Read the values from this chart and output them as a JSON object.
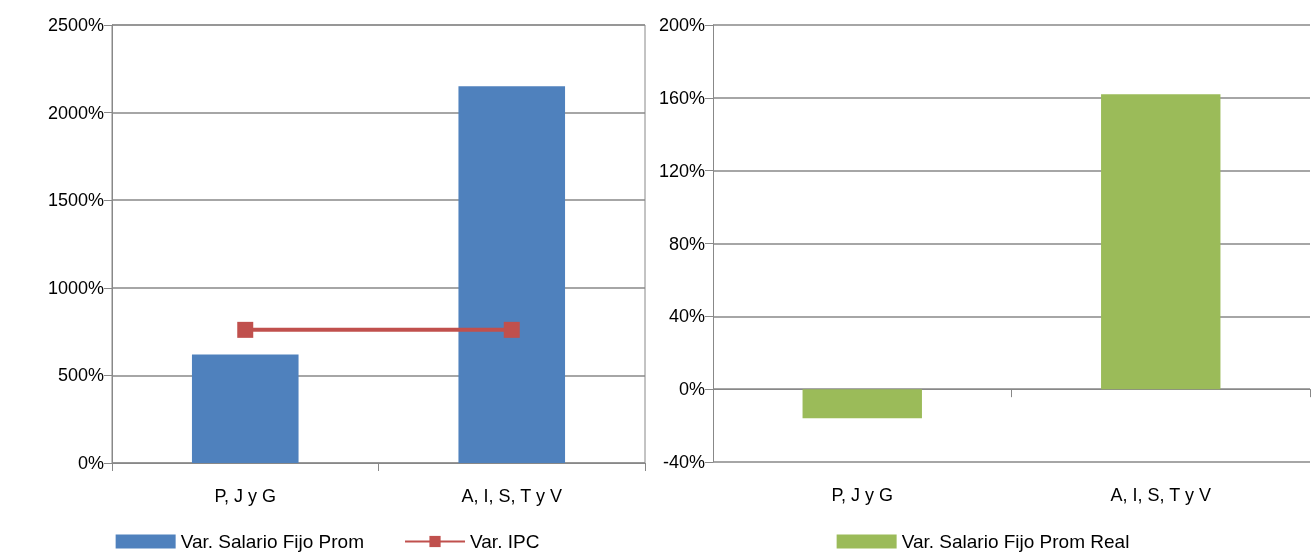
{
  "chart_data": [
    {
      "type": "bar",
      "categories": [
        "P, J y G",
        "A, I, S, T y V"
      ],
      "series": [
        {
          "name": "Var. Salario Fijo Prom",
          "color": "#4f81bd",
          "values": [
            620,
            2150
          ]
        },
        {
          "name": "Var. IPC",
          "type": "line",
          "color": "#c0504d",
          "values": [
            760,
            760
          ],
          "marker": "square"
        }
      ],
      "ylim": [
        0,
        2500
      ],
      "yticks": [
        {
          "value": 0,
          "label": "0%"
        },
        {
          "value": 500,
          "label": "500%"
        },
        {
          "value": 1000,
          "label": "1000%"
        },
        {
          "value": 1500,
          "label": "1500%"
        },
        {
          "value": 2000,
          "label": "2000%"
        },
        {
          "value": 2500,
          "label": "2500%"
        }
      ],
      "grid": "y",
      "legend": "bottom"
    },
    {
      "type": "bar",
      "categories": [
        "P, J y G",
        "A, I, S, T y V"
      ],
      "series": [
        {
          "name": "Var. Salario Fijo Prom Real",
          "color": "#9bbb59",
          "values": [
            -16,
            162
          ]
        }
      ],
      "ylim": [
        -40,
        200
      ],
      "yticks": [
        {
          "value": -40,
          "label": "-40%"
        },
        {
          "value": 0,
          "label": "0%"
        },
        {
          "value": 40,
          "label": "40%"
        },
        {
          "value": 80,
          "label": "80%"
        },
        {
          "value": 120,
          "label": "120%"
        },
        {
          "value": 160,
          "label": "160%"
        },
        {
          "value": 200,
          "label": "200%"
        }
      ],
      "grid": "y",
      "legend": "bottom"
    }
  ]
}
